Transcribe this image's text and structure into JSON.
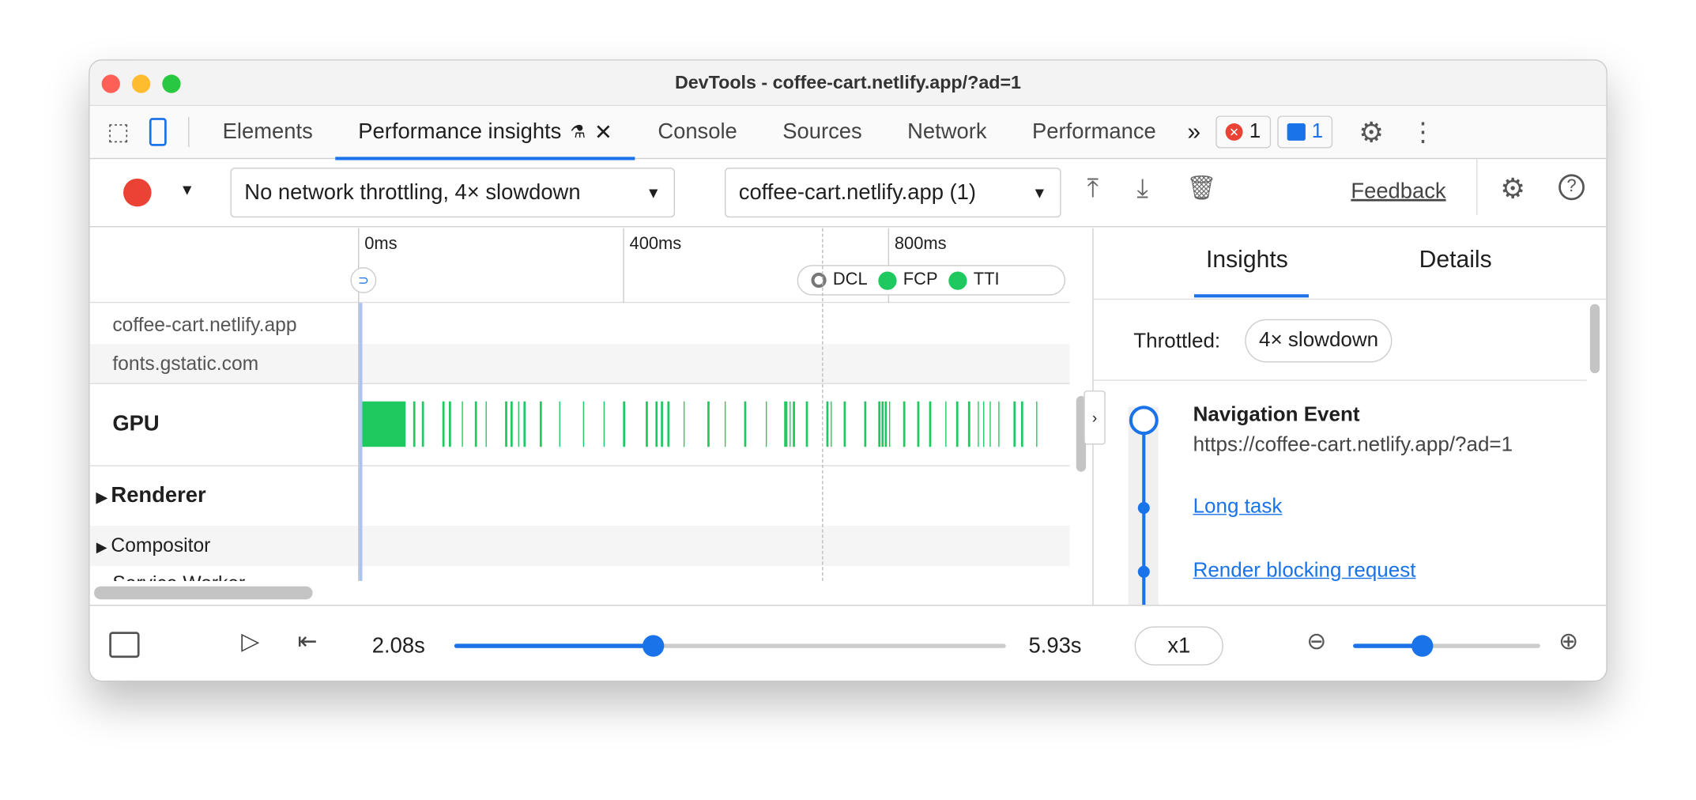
{
  "window": {
    "title": "DevTools - coffee-cart.netlify.app/?ad=1"
  },
  "tabs": [
    {
      "label": "Elements"
    },
    {
      "label": "Performance insights"
    },
    {
      "label": "Console"
    },
    {
      "label": "Sources"
    },
    {
      "label": "Network"
    },
    {
      "label": "Performance"
    }
  ],
  "badges": {
    "errors": "1",
    "messages": "1"
  },
  "toolbar": {
    "throttling": "No network throttling, 4× slowdown",
    "page": "coffee-cart.netlify.app (1)",
    "feedback": "Feedback"
  },
  "timeline": {
    "ticks": [
      "0ms",
      "400ms",
      "800ms"
    ],
    "markers": [
      "DCL",
      "FCP",
      "TTI"
    ],
    "tracks": [
      "coffee-cart.netlify.app",
      "fonts.gstatic.com",
      "GPU",
      "Renderer",
      "Compositor",
      "Service Worker"
    ],
    "gpu_events_ms": [
      [
        0,
        68
      ],
      80,
      93,
      124,
      134,
      153,
      173,
      189,
      219,
      227,
      238,
      247,
      271,
      300,
      336,
      367,
      397,
      431,
      446,
      454,
      464,
      488,
      524,
      550,
      580,
      612,
      640,
      643,
      648,
      653,
      673,
      704,
      710,
      730,
      761,
      782,
      787,
      792,
      798,
      820,
      841,
      859,
      883,
      900,
      918,
      932,
      940,
      950,
      963,
      986,
      998,
      1020
    ],
    "colors": {
      "gpu": "#1ec960",
      "accent": "#1a73e8",
      "record": "#ea4335"
    }
  },
  "sidebar": {
    "tabs": [
      "Insights",
      "Details"
    ],
    "throttled_label": "Throttled:",
    "throttled_value": "4× slowdown",
    "nav_title": "Navigation Event",
    "nav_url": "https://coffee-cart.netlify.app/?ad=1",
    "links": [
      "Long task",
      "Render blocking request"
    ]
  },
  "playback": {
    "current": "2.08s",
    "end": "5.93s",
    "speed": "x1",
    "progress": 0.36,
    "zoom": 0.37
  }
}
